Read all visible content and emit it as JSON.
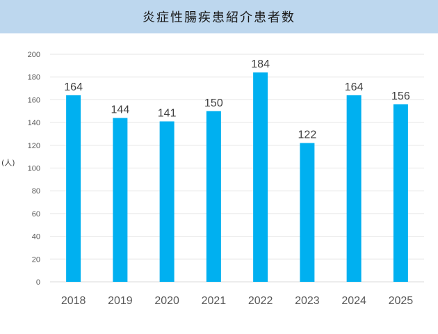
{
  "header": {
    "title": "炎症性腸疾患紹介患者数"
  },
  "chart_data": {
    "type": "bar",
    "title": "炎症性腸疾患紹介患者数",
    "ylabel": "(人)",
    "xlabel": "",
    "categories": [
      "2018",
      "2019",
      "2020",
      "2021",
      "2022",
      "2023",
      "2024",
      "2025"
    ],
    "values": [
      164,
      144,
      141,
      150,
      184,
      122,
      164,
      156
    ],
    "ylim": [
      0,
      200
    ],
    "yticks": [
      0,
      20,
      40,
      60,
      80,
      100,
      120,
      140,
      160,
      180,
      200
    ],
    "grid": true,
    "data_labels": true,
    "bar_color": "#00b0f0"
  }
}
